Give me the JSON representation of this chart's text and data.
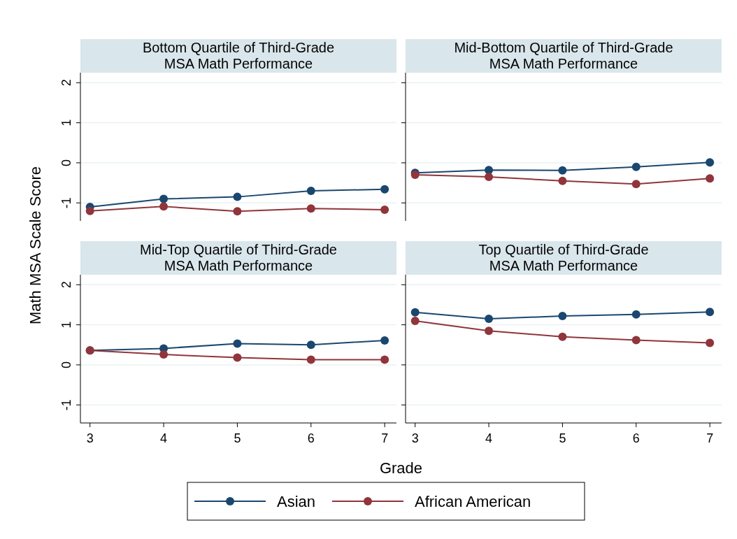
{
  "chart_data": [
    {
      "type": "line",
      "title": "Bottom Quartile of Third-Grade\nMSA Math Performance",
      "ylabel": "Math MSA Scale Score",
      "x": [
        3,
        4,
        5,
        6,
        7
      ],
      "xlim": [
        2.87,
        7.16
      ],
      "xticks": [
        3,
        4,
        5,
        6,
        7
      ],
      "ylim": [
        -1.45,
        2.25
      ],
      "yticks": [
        -1,
        0,
        1,
        2
      ],
      "grid": "y",
      "marker": "circle",
      "legend": "bottom",
      "tick_labels": "y",
      "series": [
        {
          "name": "Asian",
          "color": "#1a476f",
          "values": [
            -1.1,
            -0.9,
            -0.85,
            -0.7,
            -0.66
          ]
        },
        {
          "name": "African American",
          "color": "#90353b",
          "values": [
            -1.2,
            -1.09,
            -1.21,
            -1.14,
            -1.17
          ]
        }
      ]
    },
    {
      "type": "line",
      "title": "Mid-Bottom Quartile of Third-Grade\nMSA Math Performance",
      "x": [
        3,
        4,
        5,
        6,
        7
      ],
      "xlim": [
        2.87,
        7.16
      ],
      "xticks": [
        3,
        4,
        5,
        6,
        7
      ],
      "ylim": [
        -1.45,
        2.25
      ],
      "yticks": [
        -1,
        0,
        1,
        2
      ],
      "grid": "y",
      "marker": "circle",
      "tick_labels": false,
      "series": [
        {
          "color": "#1a476f",
          "values": [
            -0.25,
            -0.18,
            -0.19,
            -0.1,
            0.01
          ]
        },
        {
          "color": "#90353b",
          "values": [
            -0.3,
            -0.35,
            -0.45,
            -0.53,
            -0.39
          ]
        }
      ]
    },
    {
      "type": "line",
      "title": "Mid-Top Quartile of Third-Grade\nMSA Math Performance",
      "xlabel": "Grade",
      "x": [
        3,
        4,
        5,
        6,
        7
      ],
      "xlim": [
        2.87,
        7.16
      ],
      "xticks": [
        3,
        4,
        5,
        6,
        7
      ],
      "ylim": [
        -1.45,
        2.25
      ],
      "yticks": [
        -1,
        0,
        1,
        2
      ],
      "grid": "y",
      "marker": "circle",
      "series": [
        {
          "color": "#1a476f",
          "values": [
            0.36,
            0.41,
            0.53,
            0.5,
            0.61
          ]
        },
        {
          "color": "#90353b",
          "values": [
            0.36,
            0.26,
            0.18,
            0.13,
            0.13
          ]
        }
      ]
    },
    {
      "type": "line",
      "title": "Top Quartile of Third-Grade\nMSA Math Performance",
      "x": [
        3,
        4,
        5,
        6,
        7
      ],
      "xlim": [
        2.87,
        7.16
      ],
      "xticks": [
        3,
        4,
        5,
        6,
        7
      ],
      "ylim": [
        -1.45,
        2.25
      ],
      "yticks": [
        -1,
        0,
        1,
        2
      ],
      "grid": "y",
      "marker": "circle",
      "tick_labels": "x",
      "series": [
        {
          "color": "#1a476f",
          "values": [
            1.31,
            1.15,
            1.22,
            1.26,
            1.32
          ]
        },
        {
          "color": "#90353b",
          "values": [
            1.1,
            0.85,
            0.7,
            0.62,
            0.55
          ]
        }
      ]
    }
  ]
}
